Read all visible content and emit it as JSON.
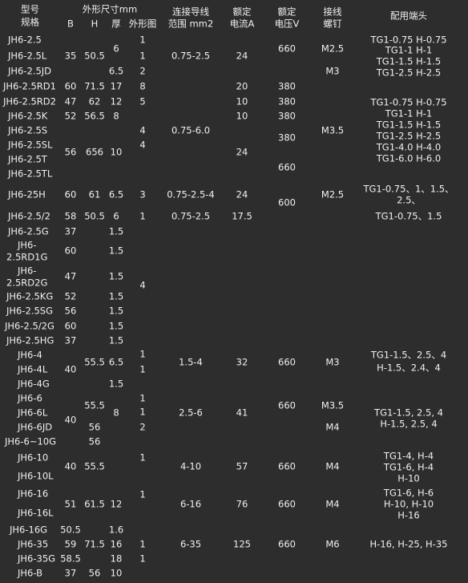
{
  "header": [
    "型号",
    "规格",
    "外形尺寸mm",
    "B",
    "H",
    "厚",
    "外形图",
    "连接导线",
    "范围 mm2",
    "额定",
    "电流A",
    "额定",
    "电压V",
    "接线",
    "螺钉",
    "配用端头"
  ],
  "body": [
    [
      "JH6-2.5",
      "1",
      "TG1-0.75 H-0.75",
      "6",
      "660",
      "M2.5",
      "TG1-1 H-1"
    ],
    [
      "JH6-2.5L",
      "35",
      "50.5",
      "1",
      "0.75-2.5",
      "24",
      "TG1-1.5 H-1.5"
    ],
    [
      "JH6-2.5JD",
      "6.5",
      "2",
      "M3",
      "TG1-2.5 H-2.5"
    ],
    [
      "JH6-2.5RD1",
      "60",
      "71.5",
      "17",
      "8",
      "20",
      "380"
    ],
    [
      "JH6-2.5RD2",
      "47",
      "62",
      "12",
      "5",
      "10",
      "380",
      "TG1-0.75 H-0.75"
    ],
    [
      "JH6-2.5K",
      "52",
      "56.5",
      "8",
      "10",
      "380",
      "TG1-1 H-1"
    ],
    [
      "JH6-2.5S",
      "4",
      "0.75-6.0",
      "M3.5",
      "TG1-1.5 H-1.5",
      "380",
      "TG1-2.5 H-2.5"
    ],
    [
      "JH6-2.5SL",
      "4",
      "TG1-4.0 H-4.0"
    ],
    [
      "56",
      "656",
      "10",
      "24",
      "TG1-6.0 H-6.0"
    ],
    [
      "JH6-2.5T",
      "660",
      "JH6-2.5TL"
    ],
    [
      "JH6-25H",
      "60",
      "61",
      "6.5",
      "3",
      "0.75-2.5-4",
      "24",
      "M2.5",
      "600",
      "TG1-0.75、1、1.5、",
      "2.5、"
    ],
    [
      "JH6-2.5/2",
      "58",
      "50.5",
      "6",
      "1",
      "0.75-2.5",
      "17.5",
      "TG1-0.75、1.5"
    ],
    [
      "JH6-2.5G",
      "37",
      "1.5"
    ],
    [
      "JH6-",
      "2.5RD1G",
      "60",
      "1.5"
    ],
    [
      "JH6-",
      "2.5RD2G",
      "47",
      "1.5"
    ],
    [
      "4"
    ],
    [
      "JH6-2.5KG",
      "52",
      "1.5"
    ],
    [
      "JH6-2.5SG",
      "56",
      "1.5"
    ],
    [
      "JH6-2.5/2G",
      "60",
      "1.5"
    ],
    [
      "JH6-2.5HG",
      "37",
      "1.5"
    ],
    [
      "JH6-4",
      "1",
      "TG1-1.5、2.5、4"
    ],
    [
      "40",
      "55.5",
      "6.5",
      "1.5-4",
      "32",
      "660",
      "M3",
      "H-1.5、2.4、4"
    ],
    [
      "JH6-4L",
      "1"
    ],
    [
      "JH6-4G",
      "1.5"
    ],
    [
      "JH6-6",
      "1"
    ],
    [
      "55.5",
      "660",
      "M3.5"
    ],
    [
      "JH6-6L",
      "1",
      "8",
      "2.5-6",
      "41",
      "TG1-1.5, 2.5, 4"
    ],
    [
      "40"
    ],
    [
      "JH6-6JD",
      "56",
      "2",
      "M4",
      "H-1.5, 2.5, 4"
    ],
    [
      "JH6-6~10G",
      "56"
    ],
    [
      "JH6-10",
      "1",
      "TG1-4, H-4"
    ],
    [
      "40",
      "55.5",
      "4-10",
      "57",
      "660",
      "M4",
      "TG1-6, H-4"
    ],
    [
      "JH6-10L",
      "H-10"
    ],
    [
      "JH6-16",
      "1",
      "TG1-6, H-6"
    ],
    [
      "51",
      "61.5",
      "12",
      "6-16",
      "76",
      "660",
      "M4",
      "H-10, H-10"
    ],
    [
      "JH6-16L",
      "H-16"
    ],
    [
      "JH6-16G",
      "50.5",
      "1.6"
    ],
    [
      "JH6-35",
      "59",
      "71.5",
      "16",
      "1",
      "6-35",
      "125",
      "660",
      "M6",
      "H-16, H-25, H-35"
    ],
    [
      "JH6-35G",
      "58.5",
      "18",
      "1"
    ],
    [
      "JH6-B",
      "37",
      "56",
      "10"
    ]
  ]
}
